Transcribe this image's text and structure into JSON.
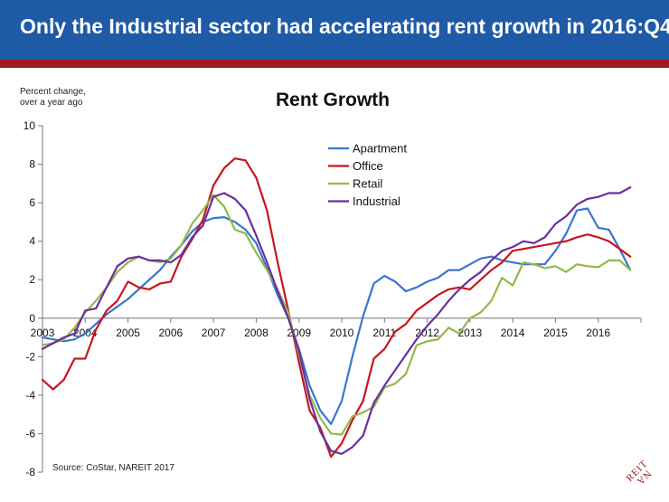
{
  "header": {
    "title": "Only the Industrial sector had accelerating rent growth in 2016:Q4"
  },
  "colors": {
    "banner": "#1f5aa6",
    "stripe": "#a0191e"
  },
  "footer": {
    "source": "Source: CoStar, NAREIT 2017",
    "logo_text": "NAREIT"
  },
  "chart_data": {
    "type": "line",
    "title": "Rent Growth",
    "ylabel_lines": [
      "Percent change,",
      "over a year ago"
    ],
    "xlabel": "",
    "ylim": [
      -8,
      10
    ],
    "yticks": [
      -8,
      -6,
      -4,
      -2,
      0,
      2,
      4,
      6,
      8,
      10
    ],
    "xlim": [
      2003,
      2017
    ],
    "xticks": [
      2003,
      2004,
      2005,
      2006,
      2007,
      2008,
      2009,
      2010,
      2011,
      2012,
      2013,
      2014,
      2015,
      2016
    ],
    "grid": false,
    "legend_position": "top-center",
    "x": [
      2003.0,
      2003.25,
      2003.5,
      2003.75,
      2004.0,
      2004.25,
      2004.5,
      2004.75,
      2005.0,
      2005.25,
      2005.5,
      2005.75,
      2006.0,
      2006.25,
      2006.5,
      2006.75,
      2007.0,
      2007.25,
      2007.5,
      2007.75,
      2008.0,
      2008.25,
      2008.5,
      2008.75,
      2009.0,
      2009.25,
      2009.5,
      2009.75,
      2010.0,
      2010.25,
      2010.5,
      2010.75,
      2011.0,
      2011.25,
      2011.5,
      2011.75,
      2012.0,
      2012.25,
      2012.5,
      2012.75,
      2013.0,
      2013.25,
      2013.5,
      2013.75,
      2014.0,
      2014.25,
      2014.5,
      2014.75,
      2015.0,
      2015.25,
      2015.5,
      2015.75,
      2016.0,
      2016.25,
      2016.5,
      2016.75
    ],
    "series": [
      {
        "name": "Apartment",
        "color": "#3a75cf",
        "values": [
          -1.0,
          -1.1,
          -1.2,
          -1.1,
          -0.8,
          -0.3,
          0.2,
          0.6,
          1.0,
          1.5,
          2.0,
          2.5,
          3.2,
          3.8,
          4.5,
          5.0,
          5.2,
          5.25,
          5.0,
          4.6,
          3.9,
          2.6,
          1.2,
          0.0,
          -1.6,
          -3.5,
          -4.8,
          -5.5,
          -4.3,
          -2.0,
          0.1,
          1.8,
          2.2,
          1.9,
          1.4,
          1.6,
          1.9,
          2.1,
          2.5,
          2.5,
          2.8,
          3.1,
          3.2,
          3.0,
          2.9,
          2.8,
          2.8,
          2.8,
          3.5,
          4.4,
          5.6,
          5.7,
          4.7,
          4.6,
          3.6,
          2.5
        ]
      },
      {
        "name": "Office",
        "color": "#c8161d",
        "values": [
          -3.2,
          -3.7,
          -3.2,
          -2.1,
          -2.1,
          -0.6,
          0.4,
          0.9,
          1.9,
          1.6,
          1.5,
          1.8,
          1.9,
          3.2,
          4.1,
          5.1,
          6.9,
          7.8,
          8.3,
          8.2,
          7.3,
          5.6,
          2.9,
          0.4,
          -2.3,
          -4.8,
          -5.7,
          -7.2,
          -6.5,
          -5.3,
          -4.3,
          -2.1,
          -1.6,
          -0.7,
          -0.3,
          0.4,
          0.8,
          1.2,
          1.5,
          1.6,
          1.5,
          2.0,
          2.5,
          2.9,
          3.5,
          3.6,
          3.7,
          3.8,
          3.9,
          4.0,
          4.2,
          4.35,
          4.2,
          4.0,
          3.6,
          3.2
        ]
      },
      {
        "name": "Retail",
        "color": "#92b94a",
        "values": [
          -1.4,
          -1.3,
          -1.1,
          -0.5,
          0.3,
          0.9,
          1.6,
          2.4,
          2.9,
          3.2,
          3.0,
          2.9,
          3.1,
          3.8,
          4.9,
          5.6,
          6.4,
          5.8,
          4.6,
          4.4,
          3.4,
          2.5,
          1.5,
          0.3,
          -1.9,
          -4.0,
          -5.2,
          -6.0,
          -6.05,
          -5.1,
          -4.9,
          -4.6,
          -3.6,
          -3.4,
          -2.9,
          -1.4,
          -1.2,
          -1.1,
          -0.5,
          -0.8,
          0.0,
          0.3,
          0.9,
          2.1,
          1.7,
          2.9,
          2.8,
          2.6,
          2.7,
          2.4,
          2.8,
          2.7,
          2.65,
          3.0,
          3.0,
          2.5
        ]
      },
      {
        "name": "Industrial",
        "color": "#6b2f9e",
        "values": [
          -1.6,
          -1.3,
          -1.0,
          -0.8,
          0.4,
          0.5,
          1.6,
          2.7,
          3.1,
          3.2,
          3.0,
          3.0,
          2.9,
          3.3,
          4.2,
          4.8,
          6.3,
          6.5,
          6.2,
          5.6,
          4.3,
          2.9,
          1.4,
          0.0,
          -1.7,
          -4.2,
          -5.9,
          -6.9,
          -7.05,
          -6.7,
          -6.1,
          -4.4,
          -3.5,
          -2.7,
          -1.9,
          -1.1,
          -0.4,
          0.2,
          0.9,
          1.5,
          2.0,
          2.4,
          3.0,
          3.5,
          3.7,
          4.0,
          3.9,
          4.2,
          4.9,
          5.3,
          5.9,
          6.2,
          6.3,
          6.5,
          6.5,
          6.8
        ]
      }
    ]
  }
}
